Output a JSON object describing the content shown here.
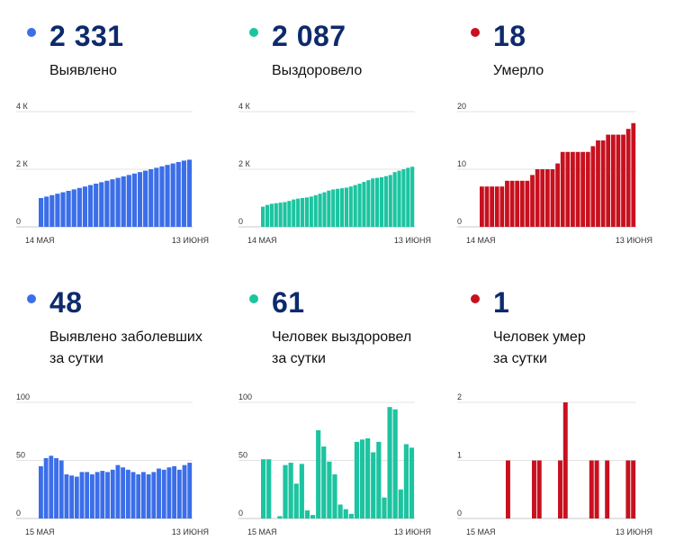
{
  "colors": {
    "blue": "#3b6ee8",
    "teal": "#1cc4a0",
    "red": "#c8101e"
  },
  "cards": [
    {
      "dot_color": "#3b6ee8",
      "value": "2 331",
      "label": [
        "Выявлено"
      ]
    },
    {
      "dot_color": "#1cc4a0",
      "value": "2 087",
      "label": [
        "Выздоровело"
      ]
    },
    {
      "dot_color": "#c8101e",
      "value": "18",
      "label": [
        "Умерло"
      ]
    },
    {
      "dot_color": "#3b6ee8",
      "value": "48",
      "label": [
        "Выявлено заболевших",
        "за сутки"
      ]
    },
    {
      "dot_color": "#1cc4a0",
      "value": "61",
      "label": [
        "Человек выздоровел",
        "за сутки"
      ]
    },
    {
      "dot_color": "#c8101e",
      "value": "1",
      "label": [
        "Человек умер",
        "за сутки"
      ]
    }
  ],
  "chart_data": [
    {
      "type": "bar",
      "title": "Выявлено",
      "color": "#3b6ee8",
      "x_start": "14 МАЯ",
      "x_end": "13 ИЮНЯ",
      "yticks": [
        0,
        2000,
        4000
      ],
      "ytick_labels": [
        "0",
        "2 К",
        "4 К"
      ],
      "ylim": [
        0,
        4000
      ],
      "values": [
        1000,
        1050,
        1100,
        1150,
        1200,
        1250,
        1300,
        1350,
        1400,
        1450,
        1500,
        1550,
        1600,
        1650,
        1700,
        1750,
        1800,
        1850,
        1900,
        1950,
        2000,
        2050,
        2100,
        2150,
        2200,
        2250,
        2300,
        2331
      ]
    },
    {
      "type": "bar",
      "title": "Выздоровело",
      "color": "#1cc4a0",
      "x_start": "14 МАЯ",
      "x_end": "13 ИЮНЯ",
      "yticks": [
        0,
        2000,
        4000
      ],
      "ytick_labels": [
        "0",
        "2 К",
        "4 К"
      ],
      "ylim": [
        0,
        4000
      ],
      "values": [
        700,
        760,
        800,
        820,
        840,
        860,
        900,
        950,
        980,
        1000,
        1020,
        1050,
        1100,
        1150,
        1200,
        1260,
        1300,
        1320,
        1340,
        1360,
        1400,
        1450,
        1500,
        1560,
        1620,
        1680,
        1700,
        1720,
        1760,
        1800,
        1900,
        1950,
        2000,
        2050,
        2087
      ]
    },
    {
      "type": "bar",
      "title": "Умерло",
      "color": "#c8101e",
      "x_start": "14 МАЯ",
      "x_end": "13 ИЮНЯ",
      "yticks": [
        0,
        10,
        20
      ],
      "ytick_labels": [
        "0",
        "10",
        "20"
      ],
      "ylim": [
        0,
        20
      ],
      "values": [
        7,
        7,
        7,
        7,
        7,
        8,
        8,
        8,
        8,
        8,
        9,
        10,
        10,
        10,
        10,
        11,
        13,
        13,
        13,
        13,
        13,
        13,
        14,
        15,
        15,
        16,
        16,
        16,
        16,
        17,
        18
      ]
    },
    {
      "type": "bar",
      "title": "Выявлено заболевших за сутки",
      "color": "#3b6ee8",
      "x_start": "15 МАЯ",
      "x_end": "13 ИЮНЯ",
      "yticks": [
        0,
        50,
        100
      ],
      "ytick_labels": [
        "0",
        "50",
        "100"
      ],
      "ylim": [
        0,
        100
      ],
      "values": [
        45,
        52,
        54,
        52,
        50,
        38,
        37,
        36,
        40,
        40,
        38,
        40,
        41,
        40,
        42,
        46,
        44,
        42,
        40,
        38,
        40,
        38,
        40,
        43,
        42,
        44,
        45,
        42,
        46,
        48
      ]
    },
    {
      "type": "bar",
      "title": "Человек выздоровел за сутки",
      "color": "#1cc4a0",
      "x_start": "15 МАЯ",
      "x_end": "13 ИЮНЯ",
      "yticks": [
        0,
        50,
        100
      ],
      "ytick_labels": [
        "0",
        "50",
        "100"
      ],
      "ylim": [
        0,
        100
      ],
      "values": [
        51,
        51,
        0,
        2,
        46,
        48,
        30,
        47,
        7,
        3,
        76,
        62,
        49,
        38,
        12,
        8,
        4,
        66,
        68,
        69,
        57,
        66,
        18,
        96,
        94,
        25,
        64,
        61
      ]
    },
    {
      "type": "bar",
      "title": "Человек умер за сутки",
      "color": "#c8101e",
      "x_start": "15 МАЯ",
      "x_end": "13 ИЮНЯ",
      "yticks": [
        0,
        1,
        2
      ],
      "ytick_labels": [
        "0",
        "1",
        "2"
      ],
      "ylim": [
        0,
        2
      ],
      "values": [
        0,
        0,
        0,
        0,
        0,
        1,
        0,
        0,
        0,
        0,
        1,
        1,
        0,
        0,
        0,
        1,
        2,
        0,
        0,
        0,
        0,
        1,
        1,
        0,
        1,
        0,
        0,
        0,
        1,
        1
      ]
    }
  ]
}
